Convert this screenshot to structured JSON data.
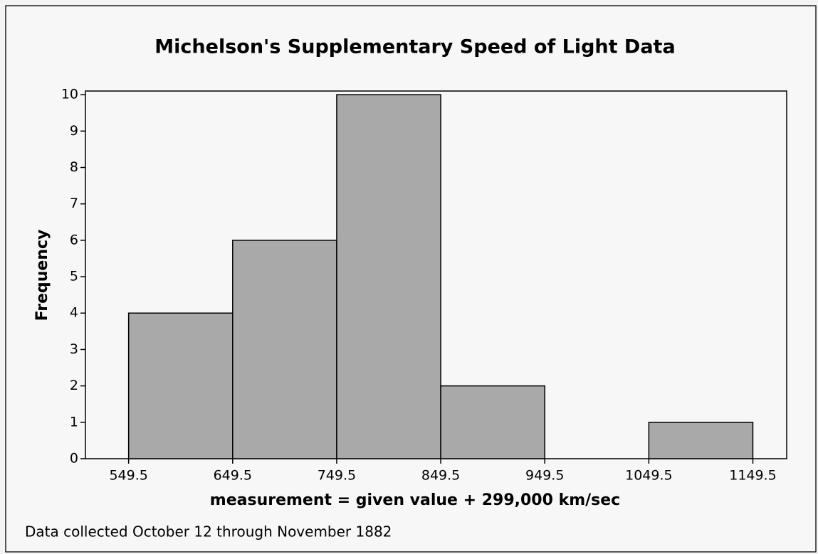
{
  "chart_data": {
    "type": "histogram",
    "title": "Michelson's Supplementary Speed of Light Data",
    "xlabel": "measurement = given value + 299,000 km/sec",
    "ylabel": "Frequency",
    "footnote": "Data collected October 12 through November 1882",
    "bins": [
      549.5,
      649.5,
      749.5,
      849.5,
      949.5,
      1049.5,
      1149.5
    ],
    "values": [
      4,
      6,
      10,
      2,
      0,
      1
    ],
    "color": "#a9a9a9",
    "xlim": [
      508,
      1182
    ],
    "xticks": [
      549.5,
      649.5,
      749.5,
      849.5,
      949.5,
      1049.5,
      1149.5
    ],
    "ylim": [
      0,
      10.1
    ],
    "yticks": [
      0,
      1,
      2,
      3,
      4,
      5,
      6,
      7,
      8,
      9,
      10
    ]
  }
}
